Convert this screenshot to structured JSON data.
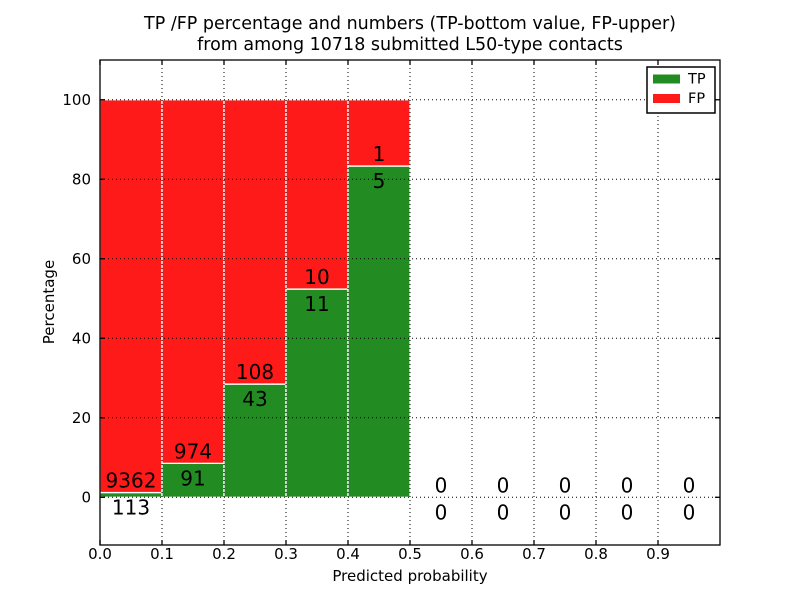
{
  "figure": {
    "title_line1": "TP /FP percentage and numbers (TP-bottom value, FP-upper)",
    "title_line2": "from among 10718 submitted L50-type contacts"
  },
  "chart_data": {
    "type": "bar",
    "stacked": true,
    "title": "TP /FP percentage and numbers (TP-bottom value, FP-upper) from among 10718 submitted L50-type contacts",
    "xlabel": "Predicted probability",
    "ylabel": "Percentage",
    "xlim": [
      0.0,
      1.0
    ],
    "ylim": [
      -12,
      110
    ],
    "xticks": [
      0.0,
      0.1,
      0.2,
      0.3,
      0.4,
      0.5,
      0.6,
      0.7,
      0.8,
      0.9
    ],
    "xtick_labels": [
      "0.0",
      "0.1",
      "0.2",
      "0.3",
      "0.4",
      "0.5",
      "0.6",
      "0.7",
      "0.8",
      "0.9"
    ],
    "yticks": [
      0,
      20,
      40,
      60,
      80,
      100
    ],
    "ytick_labels": [
      "0",
      "20",
      "40",
      "60",
      "80",
      "100"
    ],
    "grid": "dotted",
    "bar_edge_color": "#ffffff",
    "series": [
      {
        "name": "TP",
        "color": "#228b22"
      },
      {
        "name": "FP",
        "color": "#ff1a1a"
      }
    ],
    "bins": [
      {
        "range": [
          0.0,
          0.1
        ],
        "tp_count": 113,
        "fp_count": 9362,
        "tp_pct": 1.19,
        "fp_pct": 98.81
      },
      {
        "range": [
          0.1,
          0.2
        ],
        "tp_count": 91,
        "fp_count": 974,
        "tp_pct": 8.54,
        "fp_pct": 91.46
      },
      {
        "range": [
          0.2,
          0.3
        ],
        "tp_count": 43,
        "fp_count": 108,
        "tp_pct": 28.48,
        "fp_pct": 71.52
      },
      {
        "range": [
          0.3,
          0.4
        ],
        "tp_count": 11,
        "fp_count": 10,
        "tp_pct": 52.38,
        "fp_pct": 47.62
      },
      {
        "range": [
          0.4,
          0.5
        ],
        "tp_count": 5,
        "fp_count": 1,
        "tp_pct": 83.33,
        "fp_pct": 16.67
      },
      {
        "range": [
          0.5,
          0.6
        ],
        "tp_count": 0,
        "fp_count": 0,
        "tp_pct": 0,
        "fp_pct": 0
      },
      {
        "range": [
          0.6,
          0.7
        ],
        "tp_count": 0,
        "fp_count": 0,
        "tp_pct": 0,
        "fp_pct": 0
      },
      {
        "range": [
          0.7,
          0.8
        ],
        "tp_count": 0,
        "fp_count": 0,
        "tp_pct": 0,
        "fp_pct": 0
      },
      {
        "range": [
          0.8,
          0.9
        ],
        "tp_count": 0,
        "fp_count": 0,
        "tp_pct": 0,
        "fp_pct": 0
      },
      {
        "range": [
          0.9,
          1.0
        ],
        "tp_count": 0,
        "fp_count": 0,
        "tp_pct": 0,
        "fp_pct": 0
      }
    ],
    "legend": {
      "position": "upper right",
      "entries": [
        {
          "label": "TP",
          "color": "#228b22"
        },
        {
          "label": "FP",
          "color": "#ff1a1a"
        }
      ]
    }
  }
}
